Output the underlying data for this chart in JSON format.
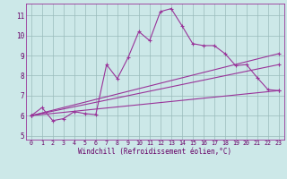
{
  "title": "",
  "xlabel": "Windchill (Refroidissement éolien,°C)",
  "ylabel": "",
  "background_color": "#cce8e8",
  "line_color": "#993399",
  "grid_color": "#99bbbb",
  "xlim": [
    -0.5,
    23.5
  ],
  "ylim": [
    4.8,
    11.6
  ],
  "yticks": [
    5,
    6,
    7,
    8,
    9,
    10,
    11
  ],
  "xticks": [
    0,
    1,
    2,
    3,
    4,
    5,
    6,
    7,
    8,
    9,
    10,
    11,
    12,
    13,
    14,
    15,
    16,
    17,
    18,
    19,
    20,
    21,
    22,
    23
  ],
  "series1_x": [
    0,
    1,
    2,
    3,
    4,
    5,
    6,
    7,
    8,
    9,
    10,
    11,
    12,
    13,
    14,
    15,
    16,
    17,
    18,
    19,
    20,
    21,
    22,
    23
  ],
  "series1_y": [
    6.0,
    6.4,
    5.75,
    5.85,
    6.2,
    6.1,
    6.05,
    8.55,
    7.85,
    8.9,
    10.2,
    9.75,
    11.2,
    11.35,
    10.5,
    9.6,
    9.5,
    9.5,
    9.1,
    8.5,
    8.55,
    7.9,
    7.3,
    7.25
  ],
  "series2_x": [
    0,
    23
  ],
  "series2_y": [
    6.0,
    7.25
  ],
  "series3_x": [
    0,
    23
  ],
  "series3_y": [
    6.0,
    8.55
  ],
  "series4_x": [
    0,
    23
  ],
  "series4_y": [
    6.0,
    9.1
  ],
  "marker": "+"
}
